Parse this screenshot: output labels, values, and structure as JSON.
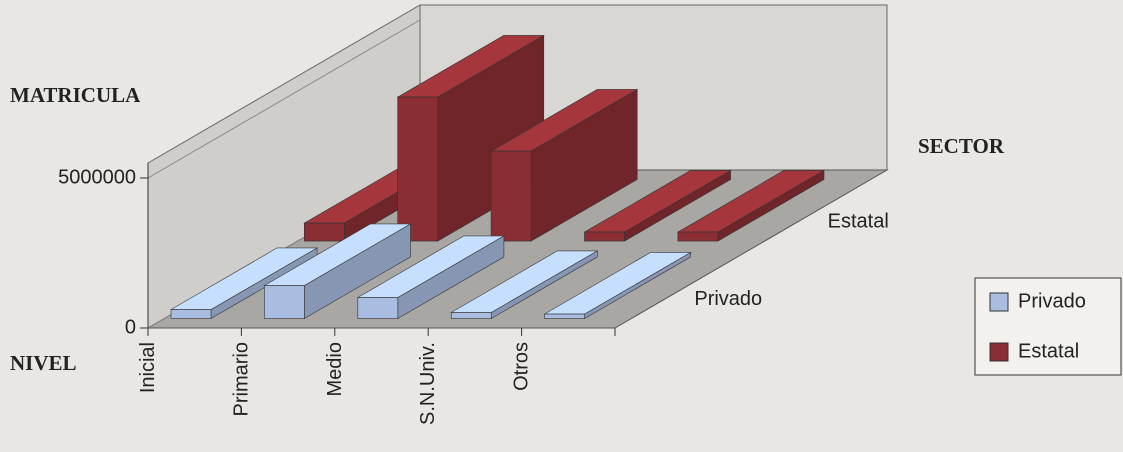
{
  "chart_data": {
    "type": "bar3d",
    "y_axis_label": "MATRICULA",
    "x_axis_label": "NIVEL",
    "depth_axis_label": "SECTOR",
    "categories": [
      "Inicial",
      "Primario",
      "Medio",
      "S.N.Univ.",
      "Otros"
    ],
    "series": [
      {
        "name": "Privado",
        "color": "#a9bde0",
        "values": [
          300000,
          1100000,
          700000,
          200000,
          150000
        ]
      },
      {
        "name": "Estatal",
        "color": "#8b2e33",
        "values": [
          600000,
          4800000,
          3000000,
          300000,
          300000
        ]
      }
    ],
    "ylim": [
      0,
      5500000
    ],
    "yticks": [
      0,
      5000000
    ],
    "legend": "right"
  }
}
